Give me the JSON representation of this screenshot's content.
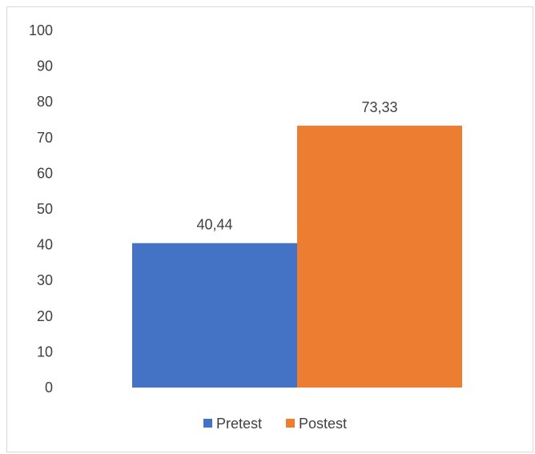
{
  "chart_data": {
    "type": "bar",
    "title": "",
    "xlabel": "",
    "ylabel": "",
    "ylim": [
      0,
      100
    ],
    "yticks": [
      0,
      10,
      20,
      30,
      40,
      50,
      60,
      70,
      80,
      90,
      100
    ],
    "grid": false,
    "legend_position": "bottom",
    "series": [
      {
        "name": "Pretest",
        "value": 40.44,
        "label": "40,44",
        "color": "#4472C4"
      },
      {
        "name": "Postest",
        "value": 73.33,
        "label": "73,33",
        "color": "#ED7D31"
      }
    ]
  }
}
